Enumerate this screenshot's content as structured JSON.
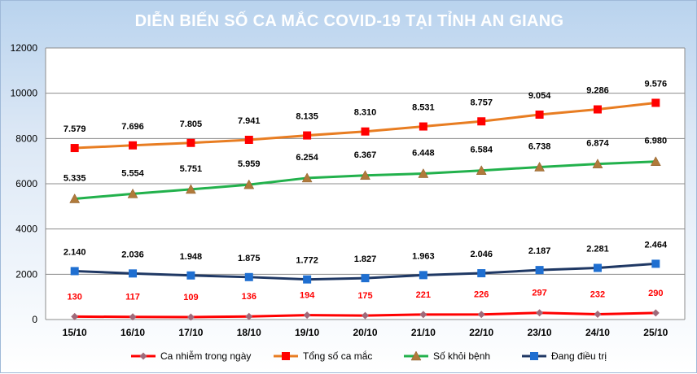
{
  "chart_data": {
    "type": "line",
    "title": "DIỄN BIẾN SỐ CA MẮC COVID-19 TẠI TỈNH AN GIANG",
    "xlabel": "",
    "ylabel": "",
    "ylim": [
      0,
      12000
    ],
    "yticks": [
      0,
      2000,
      4000,
      6000,
      8000,
      10000,
      12000
    ],
    "grid": true,
    "legend_position": "bottom",
    "categories": [
      "15/10",
      "16/10",
      "17/10",
      "18/10",
      "19/10",
      "20/10",
      "21/10",
      "22/10",
      "23/10",
      "24/10",
      "25/10"
    ],
    "series": [
      {
        "name": "Ca nhiễm trong ngày",
        "color": "#ff0000",
        "marker": "diamond",
        "marker_color": "#a06a7a",
        "label_color": "#ff0000",
        "values": [
          130,
          117,
          109,
          136,
          194,
          175,
          221,
          226,
          297,
          232,
          290
        ],
        "labels": [
          "130",
          "117",
          "109",
          "136",
          "194",
          "175",
          "221",
          "226",
          "297",
          "232",
          "290"
        ]
      },
      {
        "name": "Tổng số ca mắc",
        "color": "#e87d22",
        "marker": "square",
        "marker_color": "#ff0000",
        "label_color": "#000000",
        "values": [
          7579,
          7696,
          7805,
          7941,
          8135,
          8310,
          8531,
          8757,
          9054,
          9286,
          9576
        ],
        "labels": [
          "7.579",
          "7.696",
          "7.805",
          "7.941",
          "8.135",
          "8.310",
          "8.531",
          "8.757",
          "9.054",
          "9.286",
          "9.576"
        ]
      },
      {
        "name": "Số khỏi bệnh",
        "color": "#22b14c",
        "marker": "triangle",
        "marker_color": "#b07a3a",
        "label_color": "#000000",
        "values": [
          5335,
          5554,
          5751,
          5959,
          6254,
          6367,
          6448,
          6584,
          6738,
          6874,
          6980
        ],
        "labels": [
          "5.335",
          "5.554",
          "5.751",
          "5.959",
          "6.254",
          "6.367",
          "6.448",
          "6.584",
          "6.738",
          "6.874",
          "6.980"
        ]
      },
      {
        "name": "Đang điều trị",
        "color": "#1f3864",
        "marker": "square",
        "marker_color": "#1f6fd1",
        "label_color": "#000000",
        "values": [
          2140,
          2036,
          1948,
          1875,
          1772,
          1827,
          1963,
          2046,
          2187,
          2281,
          2464
        ],
        "labels": [
          "2.140",
          "2.036",
          "1.948",
          "1.875",
          "1.772",
          "1.827",
          "1.963",
          "2.046",
          "2.187",
          "2.281",
          "2.464"
        ]
      }
    ]
  }
}
